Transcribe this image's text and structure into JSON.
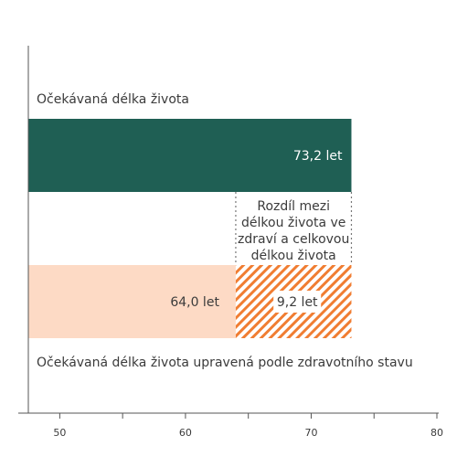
{
  "chart_data": {
    "type": "bar",
    "orientation": "horizontal",
    "xlim": [
      47.5,
      80
    ],
    "ticks": [
      50,
      60,
      70,
      80
    ],
    "tick_labels": [
      "50",
      "60",
      "70",
      "80"
    ],
    "bars": [
      {
        "name": "Očekávaná délka života",
        "value": 73.2,
        "value_label": "73,2 let",
        "color": "#1f5f54"
      },
      {
        "name": "Očekávaná délka života upravená podle zdravotního stavu",
        "value": 64.0,
        "value_label": "64,0 let",
        "color": "#fddac5"
      }
    ],
    "gap": {
      "value": 9.2,
      "value_label": "9,2 let",
      "color": "#f07d32",
      "annotation_lines": [
        "Rozdíl mezi",
        "délkou života ve",
        "zdraví a celkovou",
        "délkou života"
      ]
    },
    "grid": false
  }
}
